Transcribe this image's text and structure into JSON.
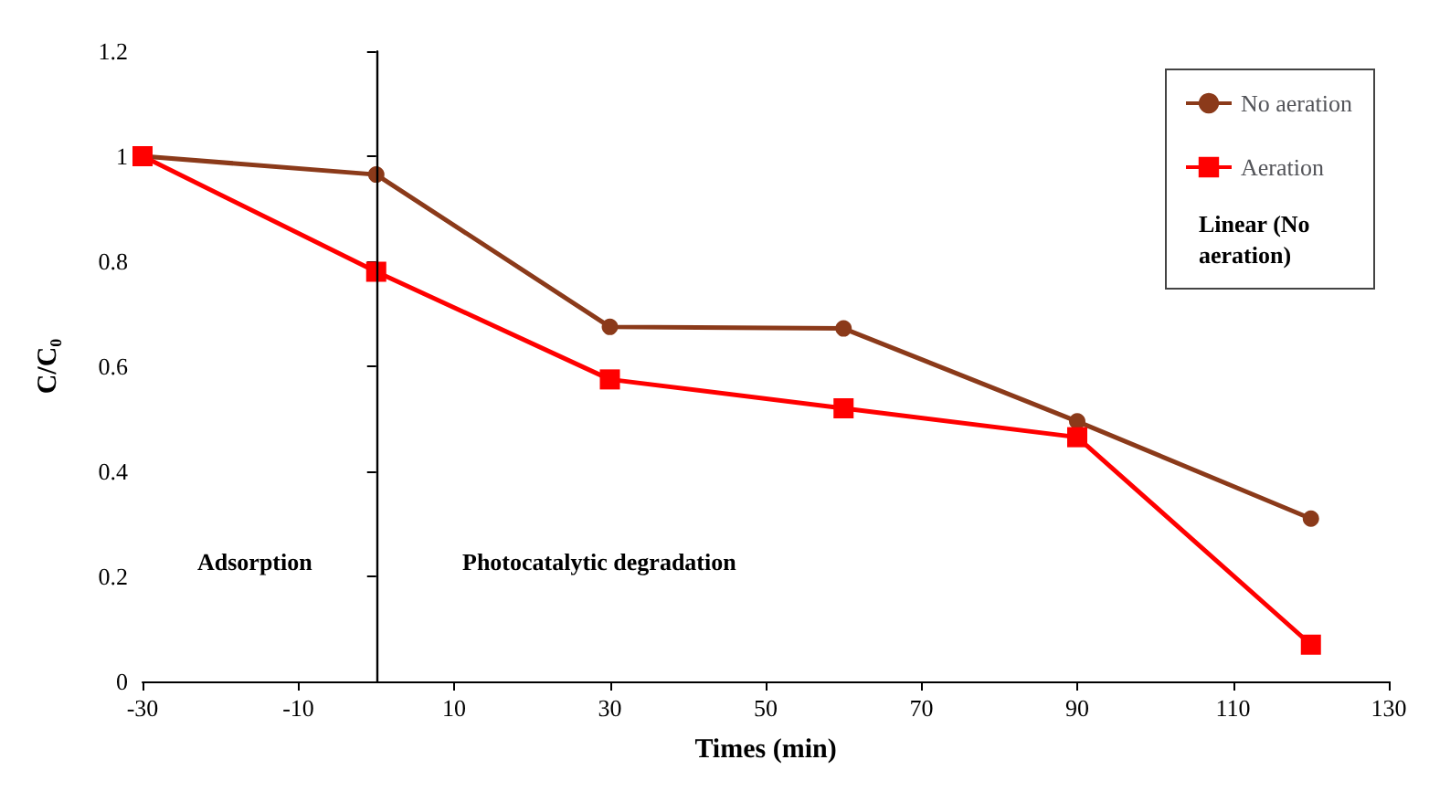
{
  "chart_data": {
    "type": "line",
    "xlabel": "Times (min)",
    "ylabel": "C/C₀",
    "x": [
      -30,
      0,
      30,
      60,
      90,
      120
    ],
    "series": [
      {
        "name": "No aeration",
        "color": "#8b3a1a",
        "marker": "circle",
        "values": [
          1,
          0.965,
          0.675,
          0.672,
          0.495,
          0.31
        ]
      },
      {
        "name": "Aeration",
        "color": "#ff0000",
        "marker": "square",
        "values": [
          1,
          0.78,
          0.575,
          0.52,
          0.465,
          0.07
        ]
      }
    ],
    "xlim": [
      -30,
      130
    ],
    "xticks": [
      -30,
      -10,
      10,
      30,
      50,
      70,
      90,
      110,
      130
    ],
    "ylim": [
      0,
      1.2
    ],
    "yticks": [
      0,
      0.2,
      0.4,
      0.6,
      0.8,
      1,
      1.2
    ],
    "ref_lines": [
      {
        "axis": "x",
        "value": 0,
        "color": "#000000"
      }
    ],
    "annotations": [
      "Adsorption",
      "Photocatalytic degradation",
      "Linear (No aeration)"
    ],
    "grid": false,
    "legend": "top right",
    "line_style": "solid"
  }
}
